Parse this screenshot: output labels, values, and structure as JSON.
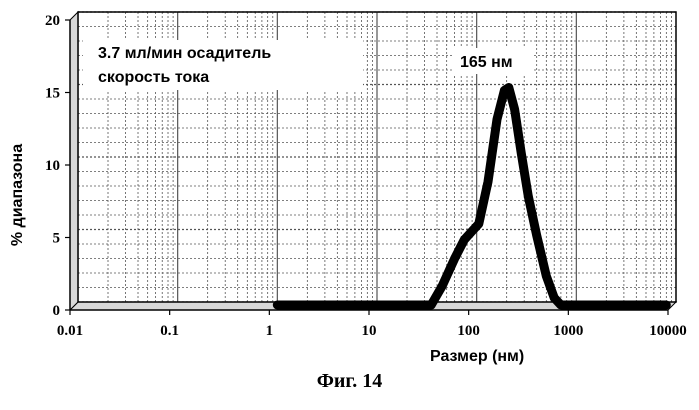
{
  "chart_data": {
    "type": "line",
    "xlabel": "Размер (нм)",
    "ylabel": "% диапазона",
    "x_scale": "log",
    "xlim": [
      0.01,
      10000
    ],
    "ylim": [
      0,
      20
    ],
    "x_ticks": [
      "0.01",
      "0.1",
      "1",
      "10",
      "100",
      "1000",
      "10000"
    ],
    "y_ticks": [
      "0",
      "5",
      "10",
      "15",
      "20"
    ],
    "grid": true,
    "annotations": {
      "legend_line1": "3.7 мл/мин осадитель",
      "legend_line2": "скорость тока",
      "peak_label": "165 нм"
    },
    "series": [
      {
        "x": [
          1,
          2,
          5,
          10,
          20,
          35,
          45,
          60,
          75,
          90,
          105,
          130,
          160,
          190,
          210,
          240,
          280,
          330,
          400,
          500,
          600,
          700,
          800,
          1000,
          2000,
          5000,
          8000
        ],
        "y": [
          0,
          0,
          0,
          0,
          0,
          0,
          1.3,
          3.2,
          4.5,
          5.1,
          5.6,
          8.5,
          12.8,
          14.8,
          15,
          13.5,
          10.5,
          7.5,
          4.8,
          2,
          0.5,
          0,
          0,
          0,
          0,
          0,
          0
        ]
      }
    ]
  },
  "figure_caption": "Фиг. 14",
  "colors": {
    "line": "#000000",
    "grid": "#555555",
    "wall": "#d8d8d8"
  }
}
